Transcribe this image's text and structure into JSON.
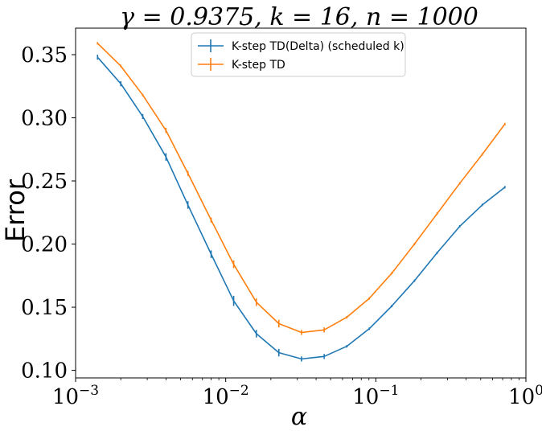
{
  "chart_data": {
    "type": "line",
    "title": "γ = 0.9375, k = 16, n = 1000",
    "xlabel": "α",
    "ylabel": "Error",
    "xscale": "log",
    "xlim": [
      0.001,
      1
    ],
    "ylim": [
      0.094,
      0.371
    ],
    "x_ticks": [
      {
        "value": 0.001,
        "base": "10",
        "exp": "−3"
      },
      {
        "value": 0.01,
        "base": "10",
        "exp": "−2"
      },
      {
        "value": 0.1,
        "base": "10",
        "exp": "−1"
      },
      {
        "value": 1,
        "base": "10",
        "exp": "0"
      }
    ],
    "y_ticks": [
      0.1,
      0.15,
      0.2,
      0.25,
      0.3,
      0.35
    ],
    "y_tick_labels": [
      "0.10",
      "0.15",
      "0.20",
      "0.25",
      "0.30",
      "0.35"
    ],
    "grid": false,
    "legend_position": "top-center",
    "x": [
      0.0014,
      0.002,
      0.0028,
      0.004,
      0.0056,
      0.008,
      0.0113,
      0.016,
      0.0226,
      0.032,
      0.0453,
      0.064,
      0.0905,
      0.128,
      0.181,
      0.256,
      0.362,
      0.512,
      0.724
    ],
    "series": [
      {
        "name": "K-step TD(Delta) (scheduled k)",
        "color": "#1f77b4",
        "values": [
          0.348,
          0.327,
          0.301,
          0.269,
          0.231,
          0.192,
          0.155,
          0.129,
          0.114,
          0.109,
          0.111,
          0.119,
          0.133,
          0.151,
          0.171,
          0.193,
          0.214,
          0.231,
          0.245
        ],
        "errors": [
          0.002,
          0.002,
          0.002,
          0.003,
          0.003,
          0.003,
          0.004,
          0.003,
          0.003,
          0.002,
          0.002,
          0.001,
          0.001,
          0.001,
          0.001,
          0.001,
          0.001,
          0.001,
          0.001
        ]
      },
      {
        "name": "K-step TD",
        "color": "#ff7f0e",
        "values": [
          0.359,
          0.341,
          0.318,
          0.29,
          0.256,
          0.219,
          0.184,
          0.154,
          0.137,
          0.13,
          0.132,
          0.142,
          0.157,
          0.177,
          0.2,
          0.224,
          0.248,
          0.271,
          0.295
        ],
        "errors": [
          0.001,
          0.001,
          0.001,
          0.002,
          0.002,
          0.002,
          0.003,
          0.003,
          0.003,
          0.002,
          0.002,
          0.001,
          0.001,
          0.001,
          0.001,
          0.001,
          0.001,
          0.001,
          0.001
        ]
      }
    ]
  }
}
